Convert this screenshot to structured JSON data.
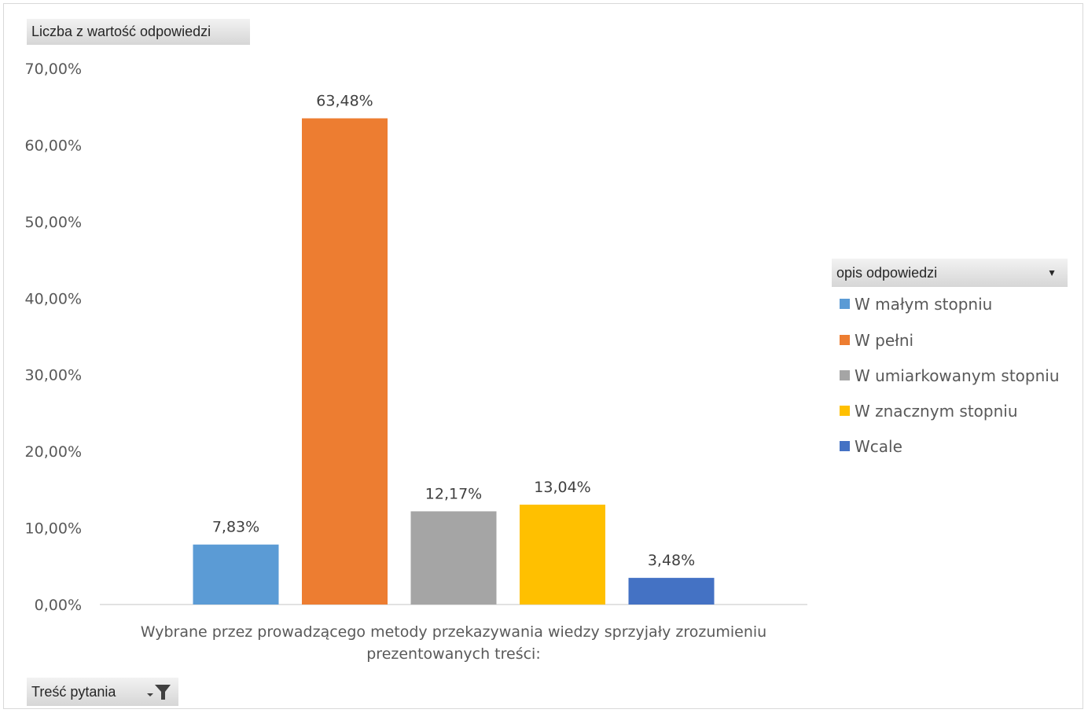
{
  "value_field": {
    "label": "Liczba z wartość odpowiedzi"
  },
  "axis_field": {
    "label": "Treść pytania"
  },
  "legend": {
    "title": "opis odpowiedzi",
    "items": [
      {
        "label": "W małym stopniu",
        "color": "#5b9bd5"
      },
      {
        "label": "W pełni",
        "color": "#ed7d31"
      },
      {
        "label": "W umiarkowanym stopniu",
        "color": "#a5a5a5"
      },
      {
        "label": "W znacznym stopniu",
        "color": "#ffc000"
      },
      {
        "label": "Wcale",
        "color": "#4472c4"
      }
    ]
  },
  "chart_data": {
    "type": "bar",
    "categories": [
      "Wybrane przez prowadzącego metody przekazywania wiedzy sprzyjały zrozumieniu prezentowanych treści:"
    ],
    "xlabel_lines": [
      "Wybrane przez prowadzącego metody przekazywania wiedzy sprzyjały zrozumieniu",
      "prezentowanych treści:"
    ],
    "ylim": [
      0,
      70
    ],
    "yticks": [
      "0,00%",
      "10,00%",
      "20,00%",
      "30,00%",
      "40,00%",
      "50,00%",
      "60,00%",
      "70,00%"
    ],
    "series": [
      {
        "name": "W małym stopniu",
        "values": [
          7.83
        ],
        "label": "7,83%",
        "color": "#5b9bd5"
      },
      {
        "name": "W pełni",
        "values": [
          63.48
        ],
        "label": "63,48%",
        "color": "#ed7d31"
      },
      {
        "name": "W umiarkowanym stopniu",
        "values": [
          12.17
        ],
        "label": "12,17%",
        "color": "#a5a5a5"
      },
      {
        "name": "W znacznym stopniu",
        "values": [
          13.04
        ],
        "label": "13,04%",
        "color": "#ffc000"
      },
      {
        "name": "Wcale",
        "values": [
          3.48
        ],
        "label": "3,48%",
        "color": "#4472c4"
      }
    ],
    "grid": false,
    "legend_position": "right"
  }
}
